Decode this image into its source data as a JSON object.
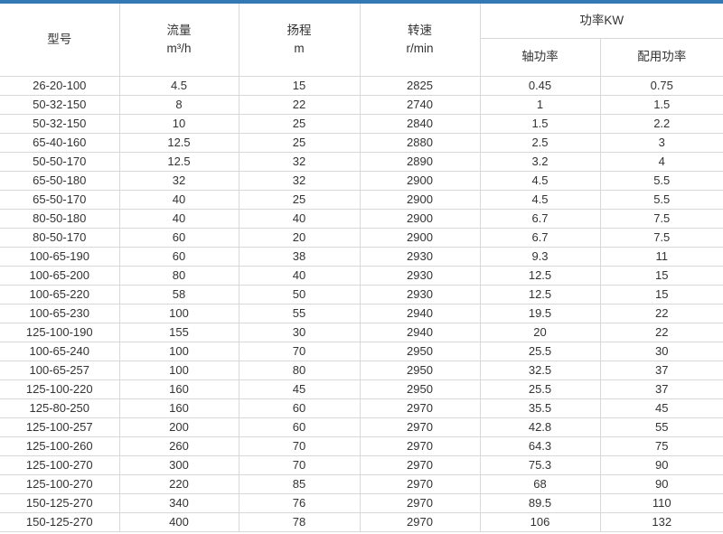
{
  "page": {
    "top_bar_color": "#3478b6",
    "background_color": "#ffffff",
    "border_color": "#d8d8d8"
  },
  "table": {
    "header": {
      "model": "型号",
      "flow": {
        "line1": "流量",
        "line2": "m³/h"
      },
      "head": {
        "line1": "扬程",
        "line2": "m"
      },
      "speed": {
        "line1": "转速",
        "line2": "r/min"
      },
      "power_group": "功率KW",
      "shaft_power": "轴功率",
      "rated_power": "配用功率"
    },
    "rows": [
      [
        "26-20-100",
        "4.5",
        "15",
        "2825",
        "0.45",
        "0.75"
      ],
      [
        "50-32-150",
        "8",
        "22",
        "2740",
        "1",
        "1.5"
      ],
      [
        "50-32-150",
        "10",
        "25",
        "2840",
        "1.5",
        "2.2"
      ],
      [
        "65-40-160",
        "12.5",
        "25",
        "2880",
        "2.5",
        "3"
      ],
      [
        "50-50-170",
        "12.5",
        "32",
        "2890",
        "3.2",
        "4"
      ],
      [
        "65-50-180",
        "32",
        "32",
        "2900",
        "4.5",
        "5.5"
      ],
      [
        "65-50-170",
        "40",
        "25",
        "2900",
        "4.5",
        "5.5"
      ],
      [
        "80-50-180",
        "40",
        "40",
        "2900",
        "6.7",
        "7.5"
      ],
      [
        "80-50-170",
        "60",
        "20",
        "2900",
        "6.7",
        "7.5"
      ],
      [
        "100-65-190",
        "60",
        "38",
        "2930",
        "9.3",
        "11"
      ],
      [
        "100-65-200",
        "80",
        "40",
        "2930",
        "12.5",
        "15"
      ],
      [
        "100-65-220",
        "58",
        "50",
        "2930",
        "12.5",
        "15"
      ],
      [
        "100-65-230",
        "100",
        "55",
        "2940",
        "19.5",
        "22"
      ],
      [
        "125-100-190",
        "155",
        "30",
        "2940",
        "20",
        "22"
      ],
      [
        "100-65-240",
        "100",
        "70",
        "2950",
        "25.5",
        "30"
      ],
      [
        "100-65-257",
        "100",
        "80",
        "2950",
        "32.5",
        "37"
      ],
      [
        "125-100-220",
        "160",
        "45",
        "2950",
        "25.5",
        "37"
      ],
      [
        "125-80-250",
        "160",
        "60",
        "2970",
        "35.5",
        "45"
      ],
      [
        "125-100-257",
        "200",
        "60",
        "2970",
        "42.8",
        "55"
      ],
      [
        "125-100-260",
        "260",
        "70",
        "2970",
        "64.3",
        "75"
      ],
      [
        "125-100-270",
        "300",
        "70",
        "2970",
        "75.3",
        "90"
      ],
      [
        "125-100-270",
        "220",
        "85",
        "2970",
        "68",
        "90"
      ],
      [
        "150-125-270",
        "340",
        "76",
        "2970",
        "89.5",
        "110"
      ],
      [
        "150-125-270",
        "400",
        "78",
        "2970",
        "106",
        "132"
      ]
    ]
  }
}
